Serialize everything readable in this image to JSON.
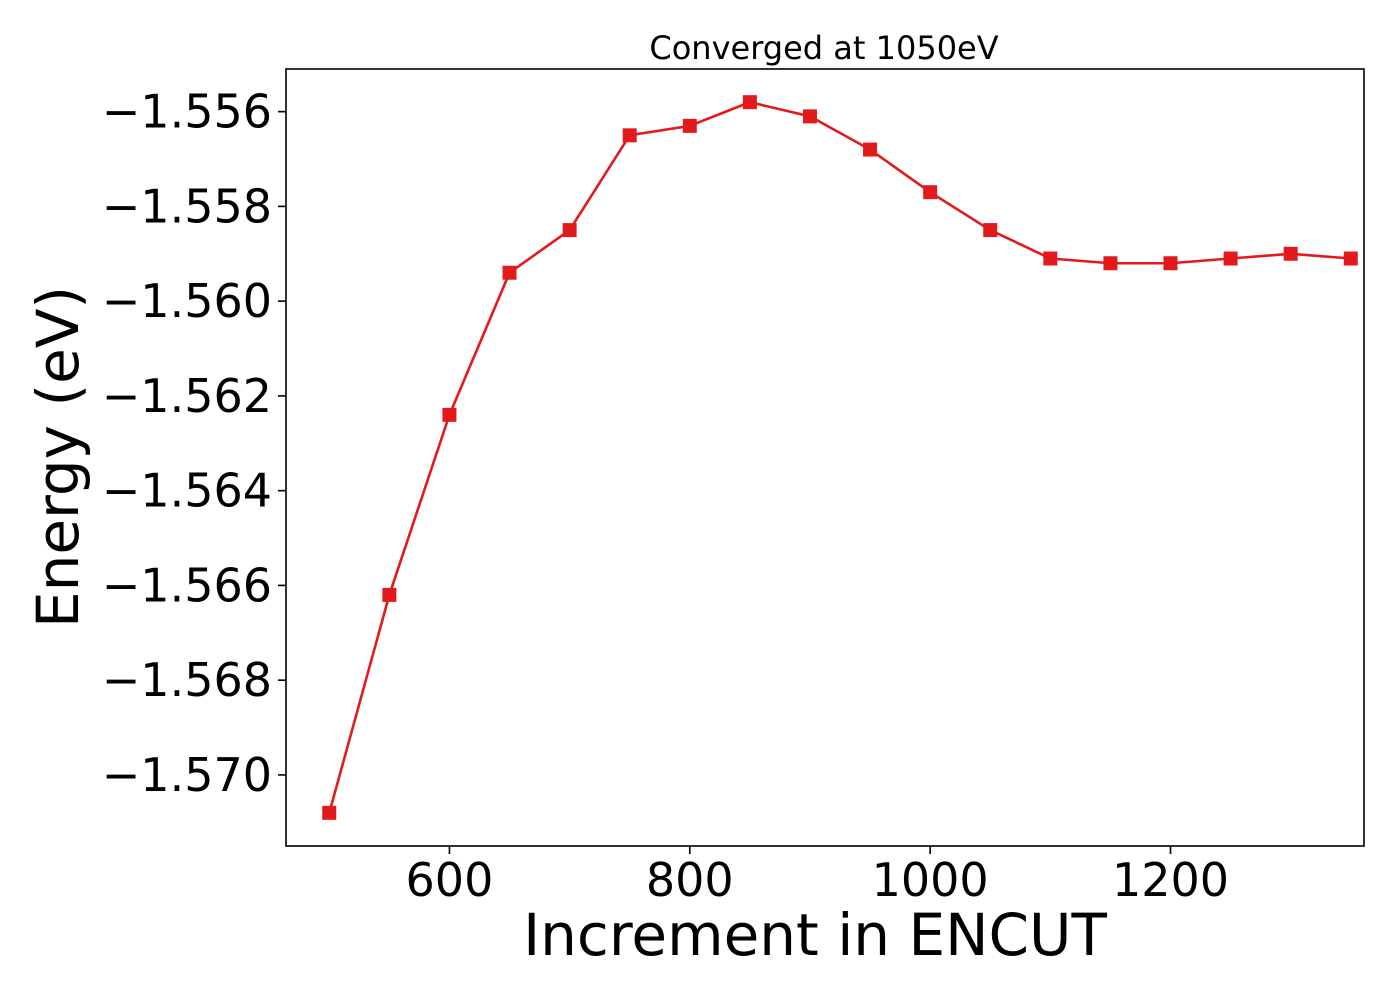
{
  "chart_data": {
    "type": "line",
    "title": "Converged at 1050eV",
    "xlabel": "Increment in ENCUT",
    "ylabel": "Energy (eV)",
    "xlim": [
      464,
      1361
    ],
    "ylim": [
      -1.5715,
      -1.5551
    ],
    "xticks": [
      600,
      800,
      1000,
      1200
    ],
    "xtick_labels": [
      "600",
      "800",
      "1000",
      "1200"
    ],
    "yticks": [
      -1.57,
      -1.568,
      -1.566,
      -1.564,
      -1.562,
      -1.56,
      -1.558,
      -1.556
    ],
    "ytick_labels": [
      "−1.570",
      "−1.568",
      "−1.566",
      "−1.564",
      "−1.562",
      "−1.560",
      "−1.558",
      "−1.556"
    ],
    "grid": false,
    "color": "#e31a1c",
    "marker": "square",
    "x": [
      500,
      550,
      600,
      650,
      700,
      750,
      800,
      850,
      900,
      950,
      1000,
      1050,
      1100,
      1150,
      1200,
      1250,
      1300,
      1350
    ],
    "y": [
      -1.5708,
      -1.5662,
      -1.5624,
      -1.5594,
      -1.5585,
      -1.5565,
      -1.5563,
      -1.5558,
      -1.5561,
      -1.5568,
      -1.5577,
      -1.5585,
      -1.5591,
      -1.5592,
      -1.5592,
      -1.5591,
      -1.559,
      -1.5591
    ]
  }
}
